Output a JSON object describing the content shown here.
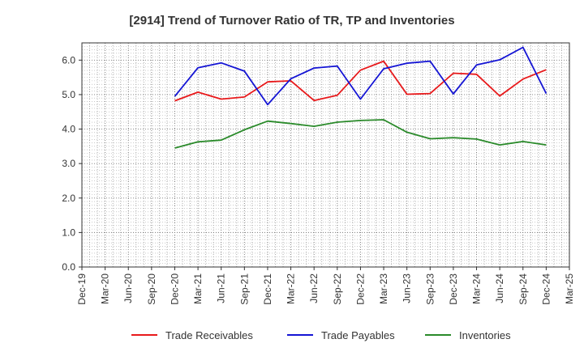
{
  "chart_data": {
    "type": "line",
    "title": "[2914]  Trend of Turnover Ratio of TR, TP and Inventories",
    "xlabel": "",
    "ylabel": "",
    "categories": [
      "Dec-19",
      "Mar-20",
      "Jun-20",
      "Sep-20",
      "Dec-20",
      "Mar-21",
      "Jun-21",
      "Sep-21",
      "Dec-21",
      "Mar-22",
      "Jun-22",
      "Sep-22",
      "Dec-22",
      "Mar-23",
      "Jun-23",
      "Sep-23",
      "Dec-23",
      "Mar-24",
      "Jun-24",
      "Sep-24",
      "Dec-24",
      "Mar-25"
    ],
    "y_ticks": [
      "0.0",
      "1.0",
      "2.0",
      "3.0",
      "4.0",
      "5.0",
      "6.0"
    ],
    "ylim": [
      0,
      6.5
    ],
    "grid": true,
    "legend_position": "bottom",
    "series": [
      {
        "name": "Trade Receivables",
        "color": "#e8191b",
        "values": [
          null,
          null,
          null,
          null,
          4.82,
          5.07,
          4.87,
          4.93,
          5.37,
          5.4,
          4.83,
          4.98,
          5.71,
          5.97,
          5.01,
          5.03,
          5.62,
          5.59,
          4.96,
          5.45,
          5.72,
          null
        ]
      },
      {
        "name": "Trade Payables",
        "color": "#1414d4",
        "values": [
          null,
          null,
          null,
          null,
          4.95,
          5.78,
          5.92,
          5.68,
          4.71,
          5.46,
          5.77,
          5.83,
          4.87,
          5.75,
          5.91,
          5.97,
          5.02,
          5.86,
          6.01,
          6.37,
          5.03,
          null
        ]
      },
      {
        "name": "Inventories",
        "color": "#2a8a2a",
        "values": [
          null,
          null,
          null,
          null,
          3.45,
          3.63,
          3.68,
          3.98,
          4.23,
          4.16,
          4.08,
          4.2,
          4.25,
          4.27,
          3.91,
          3.72,
          3.75,
          3.71,
          3.54,
          3.64,
          3.54,
          null
        ]
      }
    ]
  }
}
